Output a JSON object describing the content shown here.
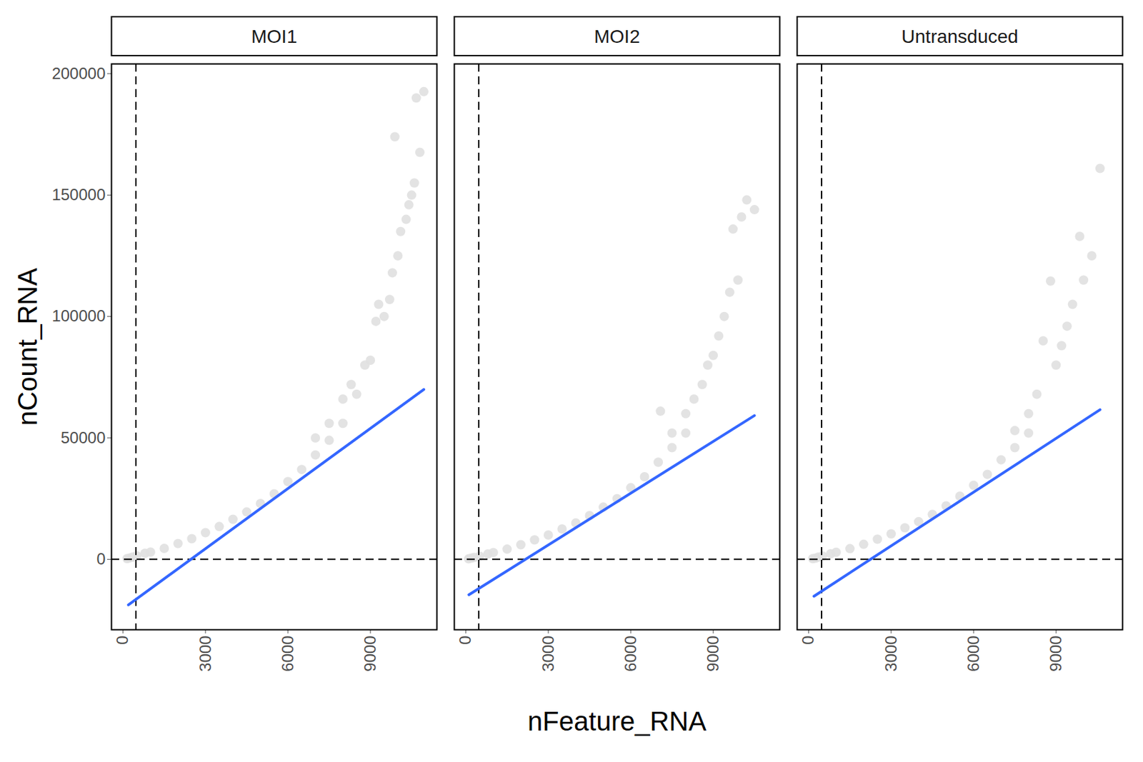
{
  "chart_data": {
    "type": "scatter",
    "x_label": "nFeature_RNA",
    "y_label": "nCount_RNA",
    "xlim": [
      -420,
      11420
    ],
    "ylim": [
      -29000,
      204000
    ],
    "xticks": [
      0,
      3000,
      6000,
      9000
    ],
    "yticks": [
      0,
      50000,
      100000,
      150000,
      200000
    ],
    "reference_lines": {
      "x": 470,
      "y": 0
    },
    "color": "#e0e0e0",
    "series": [
      {
        "name": "MOI1",
        "x": [
          150,
          250,
          350,
          500,
          800,
          1000,
          1500,
          2000,
          2500,
          3000,
          3500,
          4000,
          4500,
          5000,
          5500,
          6000,
          6500,
          7000,
          7000,
          7500,
          7500,
          8000,
          8000,
          8300,
          8500,
          8800,
          9000,
          9200,
          9300,
          9500,
          9700,
          9800,
          10000,
          10100,
          10300,
          10400,
          10500,
          10600,
          9890,
          10670,
          10800,
          10944
        ],
        "values": [
          300,
          600,
          900,
          1500,
          2500,
          3000,
          4500,
          6500,
          8500,
          11000,
          13500,
          16500,
          19500,
          23000,
          27000,
          32000,
          37000,
          43000,
          50000,
          49000,
          56000,
          56000,
          66000,
          72000,
          68000,
          80000,
          82000,
          98000,
          105000,
          100000,
          107000,
          118000,
          125000,
          135000,
          140000,
          146000,
          150000,
          155000,
          174000,
          190000,
          167600,
          192600
        ],
        "fit": {
          "x": [
            194,
            10944
          ],
          "values": [
            -18750,
            69940
          ]
        }
      },
      {
        "name": "MOI2",
        "x": [
          100,
          200,
          300,
          500,
          800,
          1000,
          1500,
          2000,
          2500,
          3000,
          3500,
          4000,
          4500,
          5000,
          5500,
          6000,
          6500,
          7000,
          7500,
          7500,
          8000,
          8000,
          8300,
          8600,
          8800,
          9000,
          9200,
          9400,
          9600,
          9720,
          9900,
          10030,
          10220,
          10500,
          7080
        ],
        "values": [
          200,
          500,
          800,
          1300,
          2200,
          2800,
          4200,
          6000,
          8000,
          10000,
          12500,
          15000,
          18000,
          21500,
          25000,
          29500,
          34000,
          40000,
          46000,
          52000,
          52000,
          60000,
          66000,
          72000,
          80000,
          84000,
          92000,
          100000,
          110000,
          136000,
          115000,
          141000,
          148000,
          144000,
          61000
        ],
        "fit": {
          "x": [
            110,
            10500
          ],
          "values": [
            -14600,
            59200
          ]
        }
      },
      {
        "name": "Untransduced",
        "x": [
          150,
          250,
          350,
          500,
          800,
          1000,
          1500,
          2000,
          2500,
          3000,
          3500,
          4000,
          4500,
          5000,
          5500,
          6000,
          6500,
          7000,
          7500,
          7500,
          8000,
          8000,
          8300,
          8530,
          8800,
          9000,
          9200,
          9400,
          9600,
          9860,
          10000,
          10300,
          10600
        ],
        "values": [
          300,
          500,
          900,
          1400,
          2300,
          2900,
          4400,
          6200,
          8300,
          10500,
          13000,
          15500,
          18500,
          22000,
          26000,
          30500,
          35000,
          41000,
          46000,
          53000,
          52000,
          60000,
          68000,
          90000,
          114600,
          80000,
          88000,
          96000,
          105000,
          133000,
          115000,
          125000,
          161000
        ],
        "fit": {
          "x": [
            190,
            10600
          ],
          "values": [
            -15200,
            61600
          ]
        }
      }
    ]
  }
}
